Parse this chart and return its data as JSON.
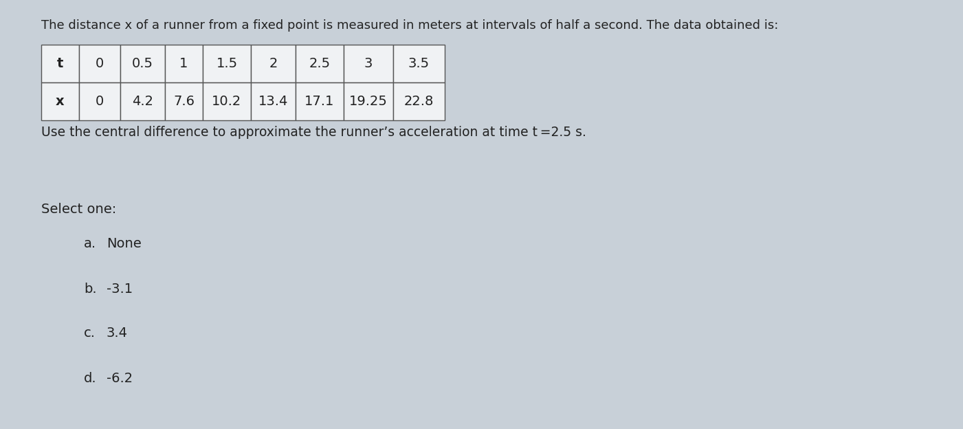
{
  "title_text": "The distance x of a runner from a fixed point is measured in meters at intervals of half a second. The data obtained is:",
  "t_row_label": "t",
  "x_row_label": "x",
  "t_values": [
    "0",
    "0.5",
    "1",
    "1.5",
    "2",
    "2.5",
    "3",
    "3.5"
  ],
  "x_values": [
    "0",
    "4.2",
    "7.6",
    "10.2",
    "13.4",
    "17.1",
    "19.25",
    "22.8"
  ],
  "question_text": "Use the central difference to approximate the runner’s acceleration at time t =2.5 s.",
  "select_one_text": "Select one:",
  "options": [
    {
      "label": "a.",
      "text": "None"
    },
    {
      "label": "b.",
      "text": "-3.1"
    },
    {
      "label": "c.",
      "text": "3.4"
    },
    {
      "label": "d.",
      "text": "-6.2"
    }
  ],
  "bg_color": "#c8d0d8",
  "cell_fill": "#f0f2f4",
  "border_color": "#555555",
  "text_color": "#222222",
  "title_fontsize": 13.0,
  "question_fontsize": 13.5,
  "option_fontsize": 14.0,
  "table_fontsize": 14.0,
  "select_fontsize": 14.0
}
